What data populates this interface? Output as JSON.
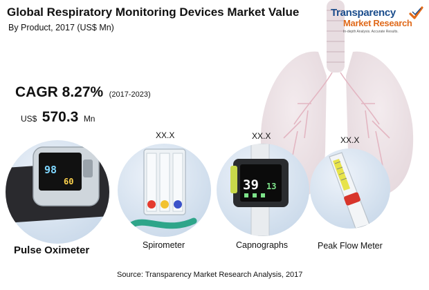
{
  "header": {
    "title": "Global Respiratory Monitoring Devices Market Value",
    "subtitle": "By Product, 2017 (US$ Mn)"
  },
  "logo": {
    "line1": "Transparency",
    "line2": "Market Research",
    "tagline": "In-depth Analysis. Accurate Results."
  },
  "cagr": {
    "label": "CAGR 8.27%",
    "period": "(2017-2023)"
  },
  "pulse_value": {
    "prefix": "US$",
    "number": "570.3",
    "unit": "Mn"
  },
  "products": [
    {
      "name": "Pulse Oximeter",
      "value": ""
    },
    {
      "name": "Spirometer",
      "value": "XX.X"
    },
    {
      "name": "Capnographs",
      "value": "XX.X"
    },
    {
      "name": "Peak Flow Meter",
      "value": "XX.X"
    }
  ],
  "capnograph_display": {
    "big": "39",
    "small": "13"
  },
  "oximeter_display": {
    "big": "98",
    "small": "60"
  },
  "source": "Source: Transparency Market Research Analysis, 2017",
  "colors": {
    "circle": "#d3e0ee",
    "logo_blue": "#1b4d8c",
    "logo_orange": "#e06a1b"
  }
}
